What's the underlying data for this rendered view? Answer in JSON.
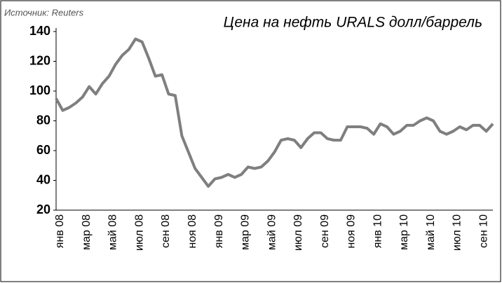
{
  "chart_data": {
    "type": "line",
    "title": "Цена на нефть  URALS  долл/баррель",
    "source": "Источник:  Reuters",
    "categories": [
      "янв 08",
      null,
      null,
      null,
      "мар 08",
      null,
      null,
      null,
      "май 08",
      null,
      null,
      null,
      "июл 08",
      null,
      null,
      null,
      "сен 08",
      null,
      null,
      null,
      "ноя 08",
      null,
      null,
      null,
      "янв 09",
      null,
      null,
      null,
      "мар 09",
      null,
      null,
      null,
      "май 09",
      null,
      null,
      null,
      "июл 09",
      null,
      null,
      null,
      "сен 09",
      null,
      null,
      null,
      "ноя 09",
      null,
      null,
      null,
      "янв 10",
      null,
      null,
      null,
      "мар 10",
      null,
      null,
      null,
      "май 10",
      null,
      null,
      null,
      "июл 10",
      null,
      null,
      null,
      "сен 10",
      null,
      null
    ],
    "series": [
      {
        "name": "URALS",
        "color": "#7f7f7f",
        "values": [
          95,
          87,
          89,
          92,
          96,
          103,
          98,
          105,
          110,
          118,
          124,
          128,
          135,
          133,
          122,
          110,
          111,
          98,
          97,
          70,
          59,
          48,
          42,
          36,
          41,
          42,
          44,
          42,
          44,
          49,
          48,
          49,
          53,
          59,
          67,
          68,
          67,
          62,
          68,
          72,
          72,
          68,
          67,
          67,
          76,
          76,
          76,
          75,
          71,
          78,
          76,
          71,
          73,
          77,
          77,
          80,
          82,
          80,
          73,
          71,
          73,
          76,
          74,
          77,
          77,
          73,
          78
        ]
      }
    ],
    "ylim": [
      20,
      140
    ],
    "yticks": [
      20,
      40,
      60,
      80,
      100,
      120,
      140
    ],
    "grid": false
  }
}
